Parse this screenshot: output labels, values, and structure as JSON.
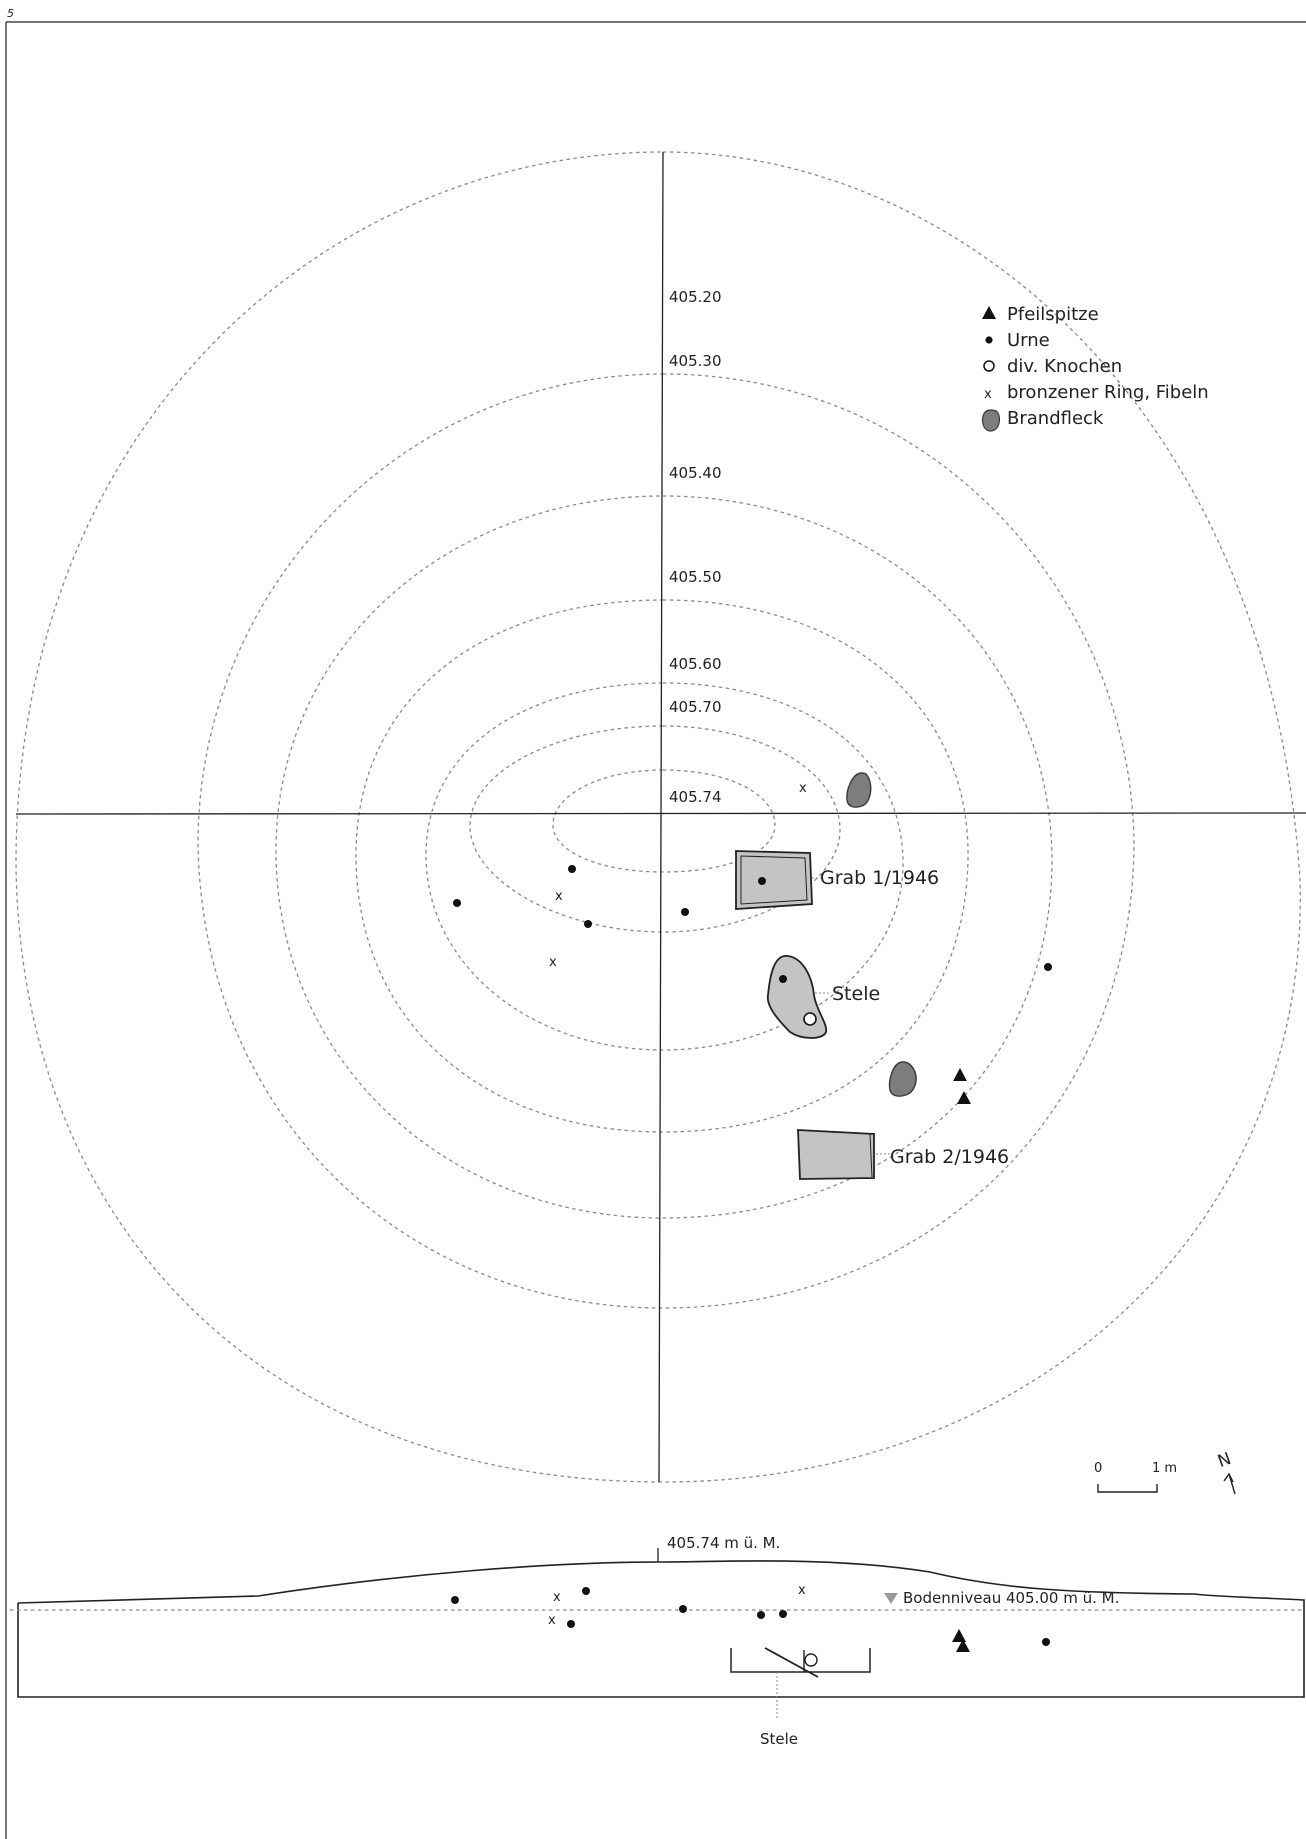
{
  "page_number": "5",
  "contours": [
    {
      "label": "405.20",
      "value": 405.2
    },
    {
      "label": "405.30",
      "value": 405.3
    },
    {
      "label": "405.40",
      "value": 405.4
    },
    {
      "label": "405.50",
      "value": 405.5
    },
    {
      "label": "405.60",
      "value": 405.6
    },
    {
      "label": "405.70",
      "value": 405.7
    },
    {
      "label": "405.74",
      "value": 405.74
    }
  ],
  "legend": [
    {
      "symbol": "triangle",
      "label": "Pfeilspitze"
    },
    {
      "symbol": "dot",
      "label": "Urne"
    },
    {
      "symbol": "circle",
      "label": "div. Knochen"
    },
    {
      "symbol": "x",
      "label": "bronzener Ring, Fibeln"
    },
    {
      "symbol": "patch",
      "label": "Brandfleck"
    }
  ],
  "features": {
    "grab1": "Grab 1/1946",
    "stele": "Stele",
    "grab2": "Grab 2/1946"
  },
  "scale": {
    "zero": "0",
    "one": "1 m"
  },
  "north": "N",
  "section": {
    "top_label": "405.74 m ü. M.",
    "ground_label": "Bodenniveau 405.00 m ü. M.",
    "stele_label": "Stele"
  },
  "colors": {
    "feature_fill": "#c4c4c4",
    "brandfleck_fill": "#7d7d7d",
    "contour_stroke": "#8a8a8a"
  }
}
